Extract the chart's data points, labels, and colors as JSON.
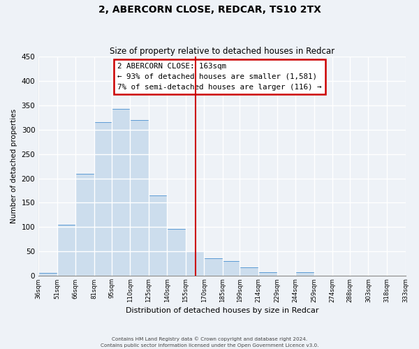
{
  "title": "2, ABERCORN CLOSE, REDCAR, TS10 2TX",
  "subtitle": "Size of property relative to detached houses in Redcar",
  "xlabel": "Distribution of detached houses by size in Redcar",
  "ylabel": "Number of detached properties",
  "bar_heights": [
    7,
    105,
    210,
    315,
    343,
    320,
    165,
    97,
    51,
    37,
    30,
    18,
    8,
    0,
    8,
    0,
    0,
    0,
    0,
    0
  ],
  "bin_labels": [
    "36sqm",
    "51sqm",
    "66sqm",
    "81sqm",
    "95sqm",
    "110sqm",
    "125sqm",
    "140sqm",
    "155sqm",
    "170sqm",
    "185sqm",
    "199sqm",
    "214sqm",
    "229sqm",
    "244sqm",
    "259sqm",
    "274sqm",
    "288sqm",
    "303sqm",
    "318sqm",
    "333sqm"
  ],
  "bin_edges": [
    36,
    51,
    66,
    81,
    95,
    110,
    125,
    140,
    155,
    170,
    185,
    199,
    214,
    229,
    244,
    259,
    274,
    288,
    303,
    318,
    333
  ],
  "bar_color": "#ccdded",
  "bar_edge_color": "#5b9bd5",
  "vline_x": 163,
  "vline_color": "#cc0000",
  "annotation_title": "2 ABERCORN CLOSE: 163sqm",
  "annotation_line1": "← 93% of detached houses are smaller (1,581)",
  "annotation_line2": "7% of semi-detached houses are larger (116) →",
  "annotation_box_edgecolor": "#cc0000",
  "ylim": [
    0,
    450
  ],
  "yticks": [
    0,
    50,
    100,
    150,
    200,
    250,
    300,
    350,
    400,
    450
  ],
  "footer1": "Contains HM Land Registry data © Crown copyright and database right 2024.",
  "footer2": "Contains public sector information licensed under the Open Government Licence v3.0.",
  "background_color": "#eef2f7",
  "grid_color": "#ffffff"
}
